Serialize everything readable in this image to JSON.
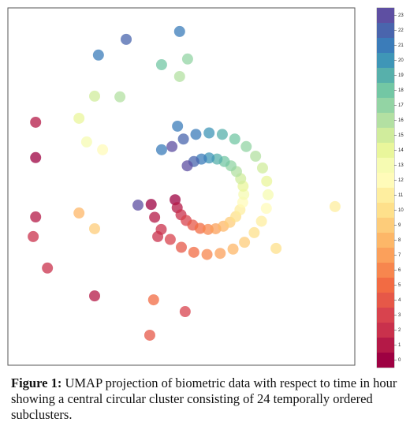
{
  "chart_data": {
    "type": "scatter",
    "xlim": [
      0,
      100
    ],
    "ylim": [
      0,
      100
    ],
    "x": [
      48.2,
      41.3,
      48.8,
      42.3,
      49.9,
      44.2,
      51.4,
      46.8,
      53.3,
      50.0,
      55.4,
      53.6,
      57.7,
      57.4,
      59.9,
      61.2,
      62.1,
      64.9,
      64.0,
      68.2,
      65.7,
      71.0,
      66.9,
      73.1,
      67.7,
      74.5,
      68.0,
      75.0,
      67.8,
      74.6,
      67.1,
      73.4,
      65.9,
      71.4,
      64.3,
      68.7,
      62.4,
      65.4,
      60.3,
      61.8,
      58.0,
      58.0,
      55.8,
      54.2,
      53.6,
      50.6,
      51.7,
      47.3,
      34.1,
      49.5,
      26.1,
      44.3,
      51.8,
      49.5,
      32.3,
      25.0,
      20.5,
      22.7,
      27.3,
      8.0,
      8.0,
      20.5,
      25.0,
      8.0,
      7.3,
      11.4,
      25.0,
      42.0,
      51.1,
      40.9,
      37.5,
      43.2,
      77.3,
      94.3,
      44.3,
      48.9
    ],
    "values": [
      46.3,
      45.0,
      44.1,
      41.4,
      42.1,
      38.0,
      40.5,
      35.2,
      39.2,
      33.0,
      38.3,
      31.6,
      38.0,
      31.0,
      38.2,
      31.3,
      38.9,
      32.5,
      40.0,
      34.4,
      41.6,
      37.1,
      43.5,
      40.3,
      45.6,
      43.9,
      47.8,
      47.7,
      50.1,
      51.5,
      52.2,
      55.2,
      54.2,
      58.5,
      55.8,
      61.2,
      57.0,
      63.3,
      57.7,
      64.6,
      58.0,
      65.0,
      57.7,
      64.6,
      57.0,
      63.3,
      55.8,
      61.2,
      91.2,
      93.4,
      86.8,
      84.1,
      85.7,
      80.8,
      75.1,
      75.3,
      69.1,
      62.5,
      60.3,
      68.0,
      58.1,
      42.6,
      38.2,
      41.5,
      36.0,
      27.2,
      19.4,
      18.3,
      15.0,
      8.4,
      44.8,
      36.0,
      32.7,
      44.4,
      60.3,
      66.9
    ],
    "hours": [
      0,
      0,
      1,
      1,
      2,
      2,
      3,
      3,
      4,
      4,
      5,
      5,
      6,
      6,
      7,
      7,
      8,
      8,
      9,
      9,
      10,
      10,
      11,
      11,
      12,
      12,
      13,
      13,
      14,
      14,
      15,
      15,
      16,
      16,
      17,
      17,
      18,
      18,
      19,
      19,
      20,
      20,
      21,
      21,
      22,
      22,
      23,
      23,
      22,
      21,
      21,
      18,
      17,
      16,
      16,
      15,
      14,
      13,
      12,
      1,
      0,
      8,
      9,
      1,
      2,
      2,
      1,
      5,
      3,
      4,
      23,
      2,
      10,
      11,
      21,
      21
    ],
    "colorbar": {
      "lim": [
        -0.5,
        23.5
      ],
      "ticks": [
        0,
        1,
        2,
        3,
        4,
        5,
        6,
        7,
        8,
        9,
        10,
        11,
        12,
        13,
        14,
        15,
        16,
        17,
        18,
        19,
        20,
        21,
        22,
        23
      ],
      "colors": [
        "#9e0142",
        "#b41947",
        "#c9314c",
        "#d8434e",
        "#e65848",
        "#f26b43",
        "#f7864e",
        "#fba05b",
        "#fdb768",
        "#fdcc7a",
        "#fee08b",
        "#feee9f",
        "#fffbb9",
        "#f6fbb2",
        "#e9f69b",
        "#d0ec9c",
        "#b3e0a2",
        "#93d4a4",
        "#73c7a4",
        "#57b0ab",
        "#3f96b7",
        "#3b7cb9",
        "#4a65ad",
        "#5e4fa2"
      ]
    },
    "caption_label": "Figure 1:",
    "caption": "UMAP projection of biometric data with respect to time in hour showing a central circular cluster consisting of 24 temporally ordered subclusters."
  }
}
